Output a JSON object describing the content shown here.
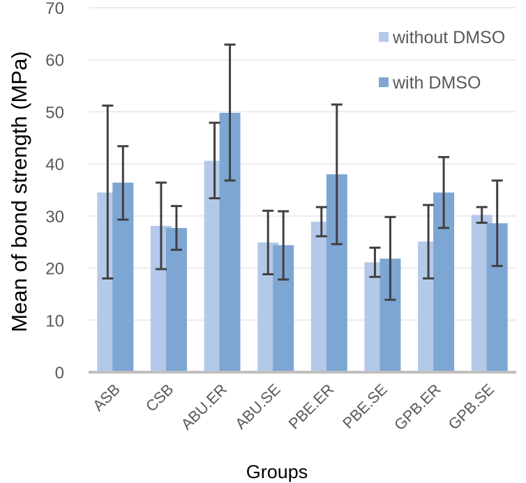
{
  "chart_data": {
    "type": "bar",
    "title": "",
    "xlabel": "Groups",
    "ylabel": "Mean of  bond strength (MPa)",
    "ylim": [
      0,
      70
    ],
    "yticks": [
      0,
      10,
      20,
      30,
      40,
      50,
      60,
      70
    ],
    "grid": true,
    "legend_position": "top-right",
    "categories": [
      "ASB",
      "CSB",
      "ABU.ER",
      "ABU.SE",
      "PBE.ER",
      "PBE.SE",
      "GPB.ER",
      "GPB.SE"
    ],
    "series": [
      {
        "name": "without DMSO",
        "color": "#b4c9e9",
        "values": [
          34.5,
          28.1,
          40.6,
          24.9,
          28.9,
          21.1,
          25.1,
          30.2
        ],
        "error_low": [
          18.0,
          19.8,
          33.4,
          18.8,
          26.1,
          18.3,
          18.0,
          28.7
        ],
        "error_high": [
          51.2,
          36.4,
          47.9,
          31.0,
          31.7,
          23.9,
          32.1,
          31.7
        ]
      },
      {
        "name": "with DMSO",
        "color": "#7ea6d3",
        "values": [
          36.4,
          27.7,
          49.8,
          24.4,
          38.0,
          21.8,
          34.5,
          28.6
        ],
        "error_low": [
          29.3,
          23.5,
          36.8,
          17.8,
          24.6,
          13.9,
          27.7,
          20.4
        ],
        "error_high": [
          43.4,
          31.9,
          62.9,
          30.9,
          51.4,
          29.8,
          41.3,
          36.8
        ]
      }
    ]
  }
}
